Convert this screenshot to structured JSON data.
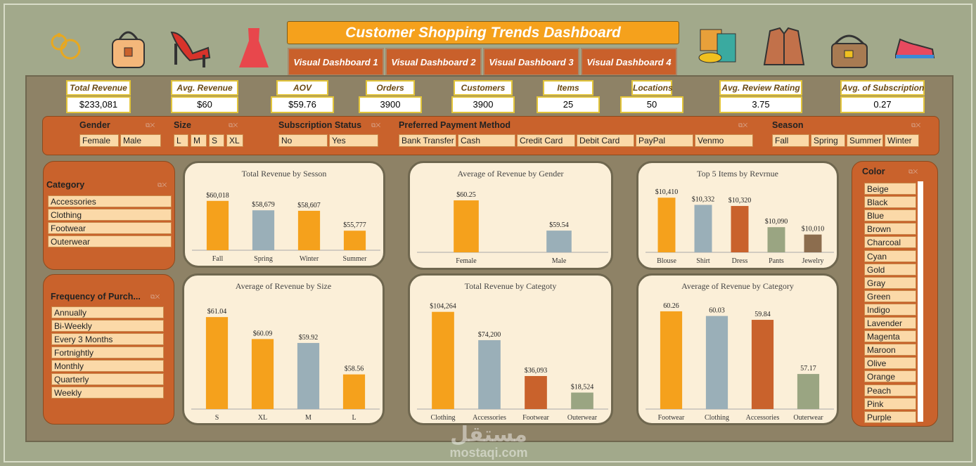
{
  "header": {
    "title": "Customer Shopping Trends Dashboard",
    "tabs": [
      "Visual Dashboard 1",
      "Visual Dashboard 2",
      "Visual Dashboard 3",
      "Visual Dashboard 4"
    ],
    "icons_left": [
      "earrings-icon",
      "handbag-icon",
      "high-heels-icon",
      "dress-icon"
    ],
    "icons_right": [
      "clothes-icon",
      "jacket-icon",
      "shoulder-bag-icon",
      "sneaker-icon"
    ]
  },
  "kpis": [
    {
      "label": "Total Revenue",
      "value": "$233,081"
    },
    {
      "label": "Avg. Revenue",
      "value": "$60"
    },
    {
      "label": "AOV",
      "value": "$59.76"
    },
    {
      "label": "Orders",
      "value": "3900"
    },
    {
      "label": "Customers",
      "value": "3900"
    },
    {
      "label": "Items",
      "value": "25"
    },
    {
      "label": "Locations",
      "value": "50"
    },
    {
      "label": "Avg.  Review Rating",
      "value": "3.75"
    },
    {
      "label": "Avg. of Subscription",
      "value": "0.27"
    }
  ],
  "slicers": {
    "gender": {
      "title": "Gender",
      "items": [
        "Female",
        "Male"
      ]
    },
    "size": {
      "title": "Size",
      "items": [
        "L",
        "M",
        "S",
        "XL"
      ]
    },
    "subscription": {
      "title": "Subscription Status",
      "items": [
        "No",
        "Yes"
      ]
    },
    "payment": {
      "title": "Preferred Payment Method",
      "items": [
        "Bank Transfer",
        "Cash",
        "Credit Card",
        "Debit Card",
        "PayPal",
        "Venmo"
      ]
    },
    "season": {
      "title": "Season",
      "items": [
        "Fall",
        "Spring",
        "Summer",
        "Winter"
      ]
    },
    "category": {
      "title": "Category",
      "items": [
        "Accessories",
        "Clothing",
        "Footwear",
        "Outerwear"
      ]
    },
    "frequency": {
      "title": "Frequency of Purch...",
      "items": [
        "Annually",
        "Bi-Weekly",
        "Every 3 Months",
        "Fortnightly",
        "Monthly",
        "Quarterly",
        "Weekly"
      ]
    },
    "color": {
      "title": "Color",
      "items": [
        "Beige",
        "Black",
        "Blue",
        "Brown",
        "Charcoal",
        "Cyan",
        "Gold",
        "Gray",
        "Green",
        "Indigo",
        "Lavender",
        "Magenta",
        "Maroon",
        "Olive",
        "Orange",
        "Peach",
        "Pink",
        "Purple"
      ]
    }
  },
  "colors": {
    "orange": "#f5a11c",
    "gray": "#9aafb8",
    "rust": "#c9622c",
    "sage": "#9aa582",
    "brown": "#8c6d4e"
  },
  "chart_data": [
    {
      "type": "bar",
      "title": "Total Revenue by Sesson",
      "categories": [
        "Fall",
        "Spring",
        "Winter",
        "Summer"
      ],
      "values": [
        60018,
        58679,
        58607,
        55777
      ],
      "labels": [
        "$60,018",
        "$58,679",
        "$58,607",
        "$55,777"
      ],
      "colors": [
        "#f5a11c",
        "#9aafb8",
        "#f5a11c",
        "#f5a11c"
      ],
      "ylim": [
        53000,
        61000
      ]
    },
    {
      "type": "bar",
      "title": "Average of Revenue by Gender",
      "categories": [
        "Female",
        "Male"
      ],
      "values": [
        60.25,
        59.54
      ],
      "labels": [
        "$60.25",
        "$59.54"
      ],
      "colors": [
        "#f5a11c",
        "#9aafb8"
      ],
      "ylim": [
        59.03,
        60.4
      ]
    },
    {
      "type": "bar",
      "title": "Top 5 Items by Revrnue",
      "categories": [
        "Blouse",
        "Shirt",
        "Dress",
        "Pants",
        "Jewelry"
      ],
      "values": [
        10410,
        10332,
        10320,
        10090,
        10010
      ],
      "labels": [
        "$10,410",
        "$10,332",
        "$10,320",
        "$10,090",
        "$10,010"
      ],
      "colors": [
        "#f5a11c",
        "#9aafb8",
        "#c9622c",
        "#9aa582",
        "#8c6d4e"
      ],
      "ylim": [
        9817,
        10450
      ]
    },
    {
      "type": "bar",
      "title": "Average of  Revenue by Size",
      "categories": [
        "S",
        "XL",
        "M",
        "L"
      ],
      "values": [
        61.04,
        60.09,
        59.92,
        58.56
      ],
      "labels": [
        "$61.04",
        "$60.09",
        "$59.92",
        "$58.56"
      ],
      "colors": [
        "#f5a11c",
        "#f5a11c",
        "#9aafb8",
        "#f5a11c"
      ],
      "ylim": [
        57.06,
        61.5
      ]
    },
    {
      "type": "bar",
      "title": "Total Revenue by Categoty",
      "categories": [
        "Clothing",
        "Accessories",
        "Footwear",
        "Outerwear"
      ],
      "values": [
        104264,
        74200,
        36093,
        18524
      ],
      "labels": [
        "$104,264",
        "$74,200",
        "$36,093",
        "$18,524"
      ],
      "colors": [
        "#f5a11c",
        "#9aafb8",
        "#c9622c",
        "#9aa582"
      ],
      "ylim": [
        1000,
        110000
      ]
    },
    {
      "type": "bar",
      "title": "Average of Revenue by Category",
      "categories": [
        "Footwear",
        "Clothing",
        "Accessories",
        "Outerwear"
      ],
      "values": [
        60.26,
        60.03,
        59.84,
        57.17
      ],
      "labels": [
        "60.26",
        "60.03",
        "59.84",
        "57.17"
      ],
      "colors": [
        "#f5a11c",
        "#9aafb8",
        "#c9622c",
        "#9aa582"
      ],
      "ylim": [
        55.44,
        60.5
      ]
    }
  ],
  "watermark": {
    "arabic": "مستقل",
    "latin": "mostaqi.com"
  }
}
